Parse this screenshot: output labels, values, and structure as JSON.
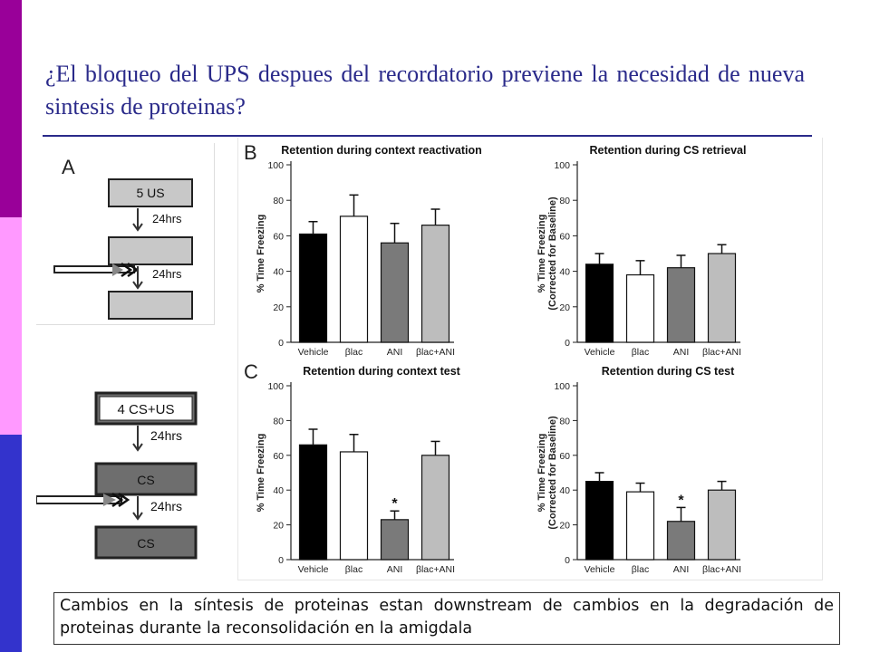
{
  "slide": {
    "title": "¿El bloqueo del UPS despues del recordatorio previene la necesidad de nueva sintesis de proteinas?",
    "caption": "Cambios en la síntesis de proteinas estan downstream de cambios en la degradación de proteinas durante la reconsolidación en la amigdala",
    "colors": {
      "title": "#2a2a8a",
      "bar_top": "#990099",
      "bar_mid": "#ff99ff",
      "bar_bottom": "#3333cc"
    }
  },
  "panel_a": {
    "label": "A",
    "top_protocol": {
      "first": "5 US",
      "interval_1": "24hrs",
      "second": "",
      "interval_2": "24hrs",
      "third": ""
    },
    "bottom_protocol": {
      "first": "4 CS+US",
      "interval_1": "24hrs",
      "second": "CS",
      "interval_2": "24hrs",
      "third": "CS"
    }
  },
  "panel_b_label": "B",
  "panel_c_label": "C",
  "chart_data": [
    {
      "type": "bar",
      "panel": "B",
      "title": "Retention during context reactivation",
      "ylabel": "% Time Freezing",
      "ylim": [
        0,
        100
      ],
      "yticks": [
        0,
        20,
        40,
        60,
        80,
        100
      ],
      "categories": [
        "Vehicle",
        "βlac",
        "ANI",
        "βlac+ANI"
      ],
      "values": [
        61,
        71,
        56,
        66
      ],
      "errors": [
        7,
        12,
        11,
        9
      ],
      "bar_colors": [
        "#000000",
        "#ffffff",
        "#7a7a7a",
        "#bdbdbd"
      ],
      "annotations": [
        "",
        "",
        "",
        ""
      ]
    },
    {
      "type": "bar",
      "panel": "B",
      "title": "Retention during CS retrieval",
      "ylabel": "% Time Freezing (Corrected for Baseline)",
      "ylim": [
        0,
        100
      ],
      "yticks": [
        0,
        20,
        40,
        60,
        80,
        100
      ],
      "categories": [
        "Vehicle",
        "βlac",
        "ANI",
        "βlac+ANI"
      ],
      "values": [
        44,
        38,
        42,
        50
      ],
      "errors": [
        6,
        8,
        7,
        5
      ],
      "bar_colors": [
        "#000000",
        "#ffffff",
        "#7a7a7a",
        "#bdbdbd"
      ],
      "annotations": [
        "",
        "",
        "",
        ""
      ]
    },
    {
      "type": "bar",
      "panel": "C",
      "title": "Retention during context test",
      "ylabel": "% Time Freezing",
      "ylim": [
        0,
        100
      ],
      "yticks": [
        0,
        20,
        40,
        60,
        80,
        100
      ],
      "categories": [
        "Vehicle",
        "βlac",
        "ANI",
        "βlac+ANI"
      ],
      "values": [
        66,
        62,
        23,
        60
      ],
      "errors": [
        9,
        10,
        5,
        8
      ],
      "bar_colors": [
        "#000000",
        "#ffffff",
        "#7a7a7a",
        "#bdbdbd"
      ],
      "annotations": [
        "",
        "",
        "*",
        ""
      ]
    },
    {
      "type": "bar",
      "panel": "C",
      "title": "Retention during CS test",
      "ylabel": "% Time Freezing (Corrected for Baseline)",
      "ylim": [
        0,
        100
      ],
      "yticks": [
        0,
        20,
        40,
        60,
        80,
        100
      ],
      "categories": [
        "Vehicle",
        "βlac",
        "ANI",
        "βlac+ANI"
      ],
      "values": [
        45,
        39,
        22,
        40
      ],
      "errors": [
        5,
        5,
        8,
        5
      ],
      "bar_colors": [
        "#000000",
        "#ffffff",
        "#7a7a7a",
        "#bdbdbd"
      ],
      "annotations": [
        "",
        "",
        "*",
        ""
      ]
    }
  ]
}
